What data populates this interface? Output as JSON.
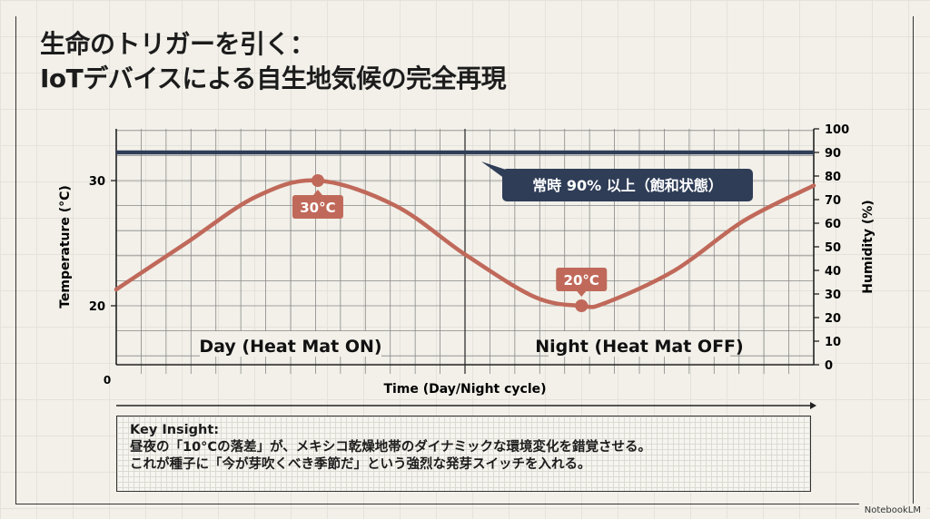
{
  "title": {
    "line1": "生命のトリガーを引く：",
    "line2": "IoTデバイスによる自生地気候の完全再現"
  },
  "chart_data": {
    "type": "line",
    "xlabel": "Time (Day/Night cycle)",
    "x_origin_label": "0",
    "ylabel_left": "Temperature (°C)",
    "ylabel_right": "Humidity (%)",
    "y_left_ticks": [
      20,
      30
    ],
    "y_right_ticks": [
      0,
      10,
      20,
      30,
      40,
      50,
      60,
      70,
      80,
      90,
      100
    ],
    "y_right_range": [
      0,
      100
    ],
    "grid": true,
    "x": [
      0,
      0.1,
      0.2,
      0.289,
      0.4,
      0.5,
      0.6,
      0.667,
      0.7,
      0.8,
      0.9,
      1.0
    ],
    "series": [
      {
        "axis": "left",
        "color": "#c0695a",
        "values": [
          21.3,
          25.0,
          28.7,
          30.0,
          28.0,
          24.1,
          20.7,
          20.0,
          20.2,
          22.8,
          26.8,
          29.6
        ]
      },
      {
        "axis": "right",
        "color": "#2f3d57",
        "values": [
          90,
          90,
          90,
          90,
          90,
          90,
          90,
          90,
          90,
          90,
          90,
          90
        ]
      }
    ],
    "phases": [
      {
        "label": "Day (Heat Mat ON)"
      },
      {
        "label": "Night (Heat Mat OFF)"
      }
    ],
    "annotations": {
      "max": "30°C",
      "min": "20°C",
      "humidity": "常時 90% 以上（飽和状態）"
    }
  },
  "insight": {
    "heading": "Key Insight:",
    "line1": "昼夜の「10°Cの落差」が、メキシコ乾燥地帯のダイナミックな環境変化を錯覚させる。",
    "line2": "これが種子に「今が芽吹くべき季節だ」という強烈な発芽スイッチを入れる。"
  },
  "badge": "NotebookLM"
}
